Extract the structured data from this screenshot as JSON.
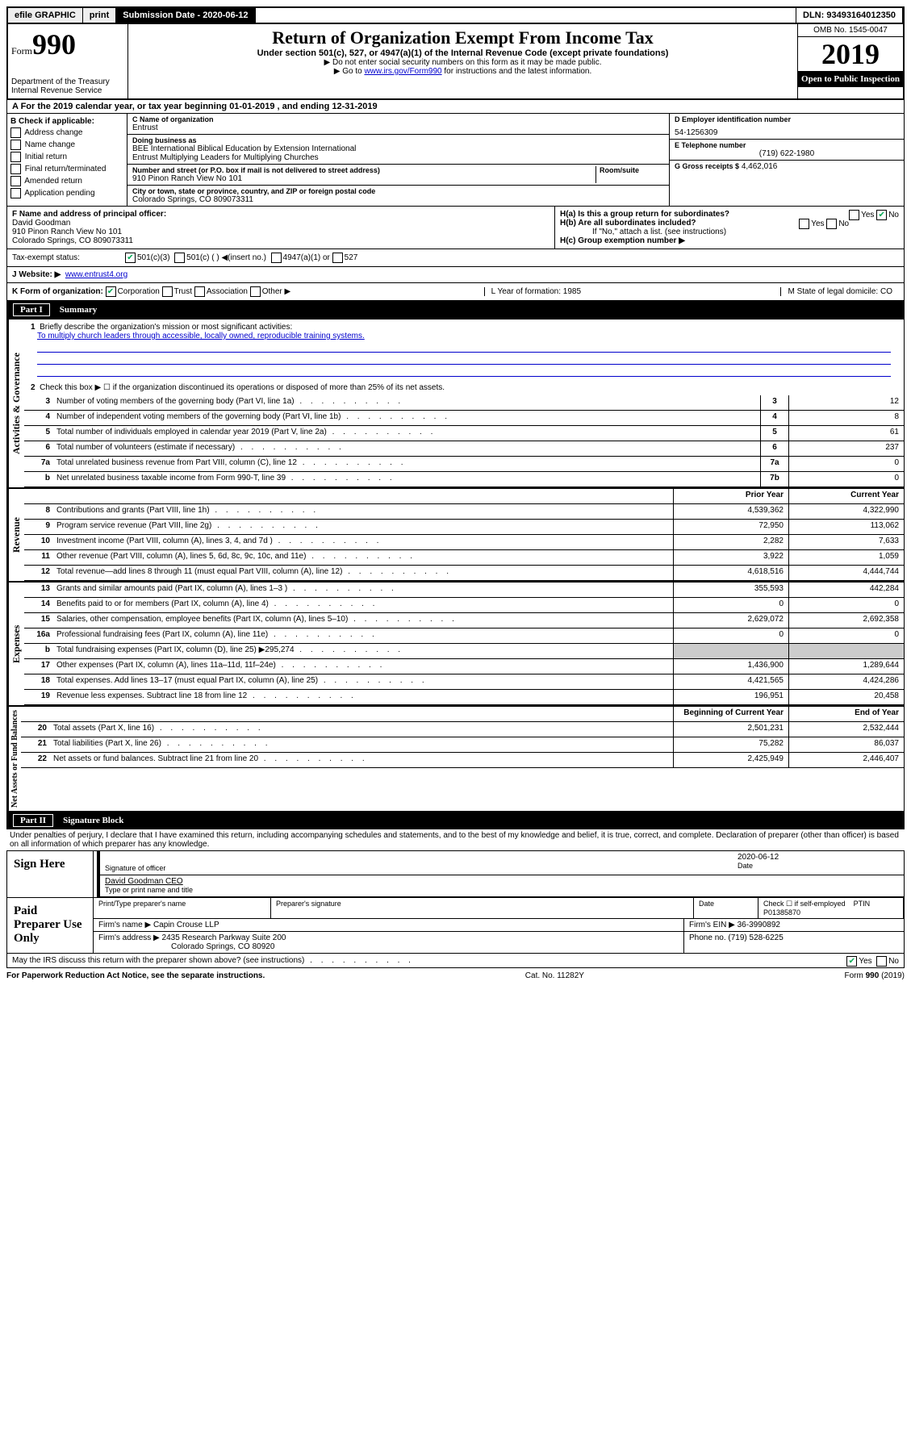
{
  "topbar": {
    "efile": "efile GRAPHIC",
    "print": "print",
    "submission": "Submission Date - 2020-06-12",
    "dln": "DLN: 93493164012350"
  },
  "header": {
    "form_word": "Form",
    "form_num": "990",
    "dept": "Department of the Treasury\nInternal Revenue Service",
    "title": "Return of Organization Exempt From Income Tax",
    "subtitle": "Under section 501(c), 527, or 4947(a)(1) of the Internal Revenue Code (except private foundations)",
    "note1": "▶ Do not enter social security numbers on this form as it may be made public.",
    "note2_pre": "▶ Go to ",
    "note2_link": "www.irs.gov/Form990",
    "note2_post": " for instructions and the latest information.",
    "omb": "OMB No. 1545-0047",
    "year": "2019",
    "open_public": "Open to Public Inspection"
  },
  "rowA": "A For the 2019 calendar year, or tax year beginning 01-01-2019   , and ending 12-31-2019",
  "colB": {
    "title": "B Check if applicable:",
    "opts": [
      "Address change",
      "Name change",
      "Initial return",
      "Final return/terminated",
      "Amended return",
      "Application pending"
    ]
  },
  "colC": {
    "name_label": "C Name of organization",
    "name": "Entrust",
    "dba_label": "Doing business as",
    "dba": "BEE International Biblical Education by Extension International\nEntrust Multiplying Leaders for Multiplying Churches",
    "addr_label": "Number and street (or P.O. box if mail is not delivered to street address)",
    "room_label": "Room/suite",
    "addr": "910 Pinon Ranch View No 101",
    "city_label": "City or town, state or province, country, and ZIP or foreign postal code",
    "city": "Colorado Springs, CO  809073311"
  },
  "colD": {
    "ein_label": "D Employer identification number",
    "ein": "54-1256309",
    "phone_label": "E Telephone number",
    "phone": "(719) 622-1980",
    "gross_label": "G Gross receipts $",
    "gross": "4,462,016"
  },
  "F": {
    "label": "F Name and address of principal officer:",
    "name": "David Goodman",
    "addr1": "910 Pinon Ranch View No 101",
    "addr2": "Colorado Springs, CO  809073311"
  },
  "H": {
    "a": "H(a)  Is this a group return for subordinates?",
    "b": "H(b)  Are all subordinates included?",
    "b_note": "If \"No,\" attach a list. (see instructions)",
    "c": "H(c)  Group exemption number ▶"
  },
  "tax_exempt": {
    "label": "Tax-exempt status:",
    "501c3": "501(c)(3)",
    "501c": "501(c) (  ) ◀(insert no.)",
    "4947": "4947(a)(1) or",
    "527": "527"
  },
  "J": {
    "label": "J  Website: ▶",
    "val": "www.entrust4.org"
  },
  "K": {
    "label": "K Form of organization:",
    "corp": "Corporation",
    "trust": "Trust",
    "assoc": "Association",
    "other": "Other ▶",
    "L": "L Year of formation: 1985",
    "M": "M State of legal domicile: CO"
  },
  "partI": {
    "num": "Part I",
    "title": "Summary",
    "line1_label": "Briefly describe the organization's mission or most significant activities:",
    "line1_text": "To multiply church leaders through accessible, locally owned, reproducible training systems.",
    "line2": "Check this box ▶ ☐  if the organization discontinued its operations or disposed of more than 25% of its net assets.",
    "vert_gov": "Activities & Governance",
    "vert_rev": "Revenue",
    "vert_exp": "Expenses",
    "vert_net": "Net Assets or Fund Balances"
  },
  "gov_lines": [
    {
      "n": "3",
      "d": "Number of voting members of the governing body (Part VI, line 1a)",
      "r": "3",
      "v": "12"
    },
    {
      "n": "4",
      "d": "Number of independent voting members of the governing body (Part VI, line 1b)",
      "r": "4",
      "v": "8"
    },
    {
      "n": "5",
      "d": "Total number of individuals employed in calendar year 2019 (Part V, line 2a)",
      "r": "5",
      "v": "61"
    },
    {
      "n": "6",
      "d": "Total number of volunteers (estimate if necessary)",
      "r": "6",
      "v": "237"
    },
    {
      "n": "7a",
      "d": "Total unrelated business revenue from Part VIII, column (C), line 12",
      "r": "7a",
      "v": "0"
    },
    {
      "n": "b",
      "d": "Net unrelated business taxable income from Form 990-T, line 39",
      "r": "7b",
      "v": "0"
    }
  ],
  "year_cols": {
    "prior": "Prior Year",
    "current": "Current Year"
  },
  "rev_lines": [
    {
      "n": "8",
      "d": "Contributions and grants (Part VIII, line 1h)",
      "p": "4,539,362",
      "c": "4,322,990"
    },
    {
      "n": "9",
      "d": "Program service revenue (Part VIII, line 2g)",
      "p": "72,950",
      "c": "113,062"
    },
    {
      "n": "10",
      "d": "Investment income (Part VIII, column (A), lines 3, 4, and 7d )",
      "p": "2,282",
      "c": "7,633"
    },
    {
      "n": "11",
      "d": "Other revenue (Part VIII, column (A), lines 5, 6d, 8c, 9c, 10c, and 11e)",
      "p": "3,922",
      "c": "1,059"
    },
    {
      "n": "12",
      "d": "Total revenue—add lines 8 through 11 (must equal Part VIII, column (A), line 12)",
      "p": "4,618,516",
      "c": "4,444,744"
    }
  ],
  "exp_lines": [
    {
      "n": "13",
      "d": "Grants and similar amounts paid (Part IX, column (A), lines 1–3 )",
      "p": "355,593",
      "c": "442,284"
    },
    {
      "n": "14",
      "d": "Benefits paid to or for members (Part IX, column (A), line 4)",
      "p": "0",
      "c": "0"
    },
    {
      "n": "15",
      "d": "Salaries, other compensation, employee benefits (Part IX, column (A), lines 5–10)",
      "p": "2,629,072",
      "c": "2,692,358"
    },
    {
      "n": "16a",
      "d": "Professional fundraising fees (Part IX, column (A), line 11e)",
      "p": "0",
      "c": "0"
    },
    {
      "n": "b",
      "d": "Total fundraising expenses (Part IX, column (D), line 25) ▶295,274",
      "p": "grey",
      "c": "grey"
    },
    {
      "n": "17",
      "d": "Other expenses (Part IX, column (A), lines 11a–11d, 11f–24e)",
      "p": "1,436,900",
      "c": "1,289,644"
    },
    {
      "n": "18",
      "d": "Total expenses. Add lines 13–17 (must equal Part IX, column (A), line 25)",
      "p": "4,421,565",
      "c": "4,424,286"
    },
    {
      "n": "19",
      "d": "Revenue less expenses. Subtract line 18 from line 12",
      "p": "196,951",
      "c": "20,458"
    }
  ],
  "net_cols": {
    "begin": "Beginning of Current Year",
    "end": "End of Year"
  },
  "net_lines": [
    {
      "n": "20",
      "d": "Total assets (Part X, line 16)",
      "p": "2,501,231",
      "c": "2,532,444"
    },
    {
      "n": "21",
      "d": "Total liabilities (Part X, line 26)",
      "p": "75,282",
      "c": "86,037"
    },
    {
      "n": "22",
      "d": "Net assets or fund balances. Subtract line 21 from line 20",
      "p": "2,425,949",
      "c": "2,446,407"
    }
  ],
  "partII": {
    "num": "Part II",
    "title": "Signature Block",
    "perjury": "Under penalties of perjury, I declare that I have examined this return, including accompanying schedules and statements, and to the best of my knowledge and belief, it is true, correct, and complete. Declaration of preparer (other than officer) is based on all information of which preparer has any knowledge."
  },
  "sign": {
    "label": "Sign Here",
    "sig_label": "Signature of officer",
    "date": "2020-06-12",
    "date_label": "Date",
    "name": "David Goodman  CEO",
    "name_label": "Type or print name and title"
  },
  "preparer": {
    "label": "Paid Preparer Use Only",
    "print_name_label": "Print/Type preparer's name",
    "sig_label": "Preparer's signature",
    "date_label": "Date",
    "check_label": "Check ☐ if self-employed",
    "ptin_label": "PTIN",
    "ptin": "P01385870",
    "firm_name_label": "Firm's name   ▶",
    "firm_name": "Capin Crouse LLP",
    "firm_ein_label": "Firm's EIN ▶",
    "firm_ein": "36-3990892",
    "firm_addr_label": "Firm's address ▶",
    "firm_addr": "2435 Research Parkway Suite 200",
    "firm_city": "Colorado Springs, CO  80920",
    "phone_label": "Phone no.",
    "phone": "(719) 528-6225"
  },
  "discuss": "May the IRS discuss this return with the preparer shown above? (see instructions)",
  "bottom": {
    "paperwork": "For Paperwork Reduction Act Notice, see the separate instructions.",
    "cat": "Cat. No. 11282Y",
    "form": "Form 990 (2019)"
  }
}
